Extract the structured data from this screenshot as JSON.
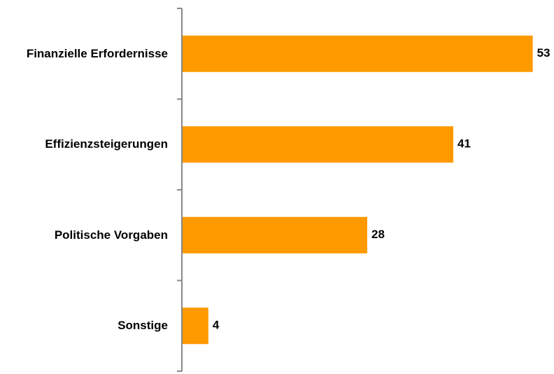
{
  "chart_data": {
    "type": "bar",
    "orientation": "horizontal",
    "categories": [
      "Finanzielle Erfordernisse",
      "Effizienzsteigerungen",
      "Politische Vorgaben",
      "Sonstige"
    ],
    "values": [
      53,
      41,
      28,
      4
    ],
    "color": "#ff9900",
    "xlim": [
      0,
      56
    ]
  }
}
